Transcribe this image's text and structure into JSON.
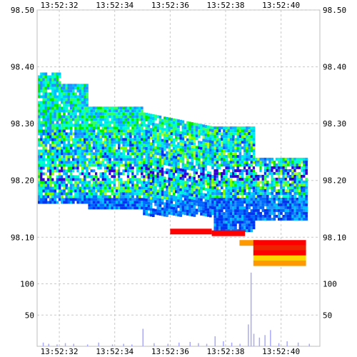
{
  "chart_data": [
    {
      "type": "heatmap",
      "title": "",
      "xlabel": "",
      "ylabel": "",
      "x_ticks": [
        "13:52:32",
        "13:52:34",
        "13:52:36",
        "13:52:38",
        "13:52:40"
      ],
      "x_tick_seconds": [
        32,
        34,
        36,
        38,
        40
      ],
      "y_ticks": [
        98.5,
        98.4,
        98.3,
        98.2,
        98.1
      ],
      "y_tick_labels": [
        "98.50",
        "98.40",
        "98.30",
        "98.20",
        "98.10"
      ],
      "xlim_seconds": [
        31.2,
        41.4
      ],
      "ylim": [
        98.04,
        98.5
      ],
      "grid": true,
      "colors": {
        "grid": "#c8c8c8",
        "frame": "#bdbdbd",
        "volume_bar": "#a9a9f5",
        "palette": [
          "#0033ee",
          "#0066ff",
          "#1e90ff",
          "#00bfff",
          "#00e5ee",
          "#00ffcc",
          "#33ff66",
          "#00ee00",
          "#7cfc00",
          "#adff2f",
          "#ffffff",
          "#3300cc",
          "#ff0000",
          "#ee2200",
          "#ffd700",
          "#ff9900"
        ]
      },
      "legend": "none",
      "annotations": [
        {
          "text": "Red bids",
          "time_sec": [
            36.0,
            37.5
          ],
          "price": [
            98.115,
            98.105
          ],
          "color": "#ff0000"
        },
        {
          "text": "Red/yellow band",
          "time_sec": [
            39.0,
            40.9
          ],
          "price": [
            98.095,
            98.05
          ],
          "color": "#ffd700"
        }
      ]
    },
    {
      "type": "bar",
      "title": "",
      "y_ticks": [
        100,
        50
      ],
      "ylim": [
        0,
        120
      ],
      "xlim_seconds": [
        31.2,
        41.4
      ],
      "series": [
        {
          "x_seconds": [
            31.4,
            31.6,
            31.9,
            32.2,
            32.5,
            33.0,
            33.4,
            33.9,
            34.3,
            34.6,
            35.0,
            35.4,
            35.9,
            36.3,
            36.7,
            37.0,
            37.3,
            37.6,
            37.9,
            38.2,
            38.5,
            38.8,
            38.9,
            39.0,
            39.2,
            39.4,
            39.6,
            39.9,
            40.2,
            40.6,
            41.0
          ],
          "values": [
            6,
            4,
            3,
            5,
            4,
            3,
            6,
            3,
            4,
            3,
            28,
            5,
            4,
            6,
            7,
            5,
            4,
            16,
            8,
            6,
            4,
            35,
            118,
            20,
            14,
            18,
            26,
            5,
            8,
            6,
            4
          ]
        }
      ]
    }
  ]
}
